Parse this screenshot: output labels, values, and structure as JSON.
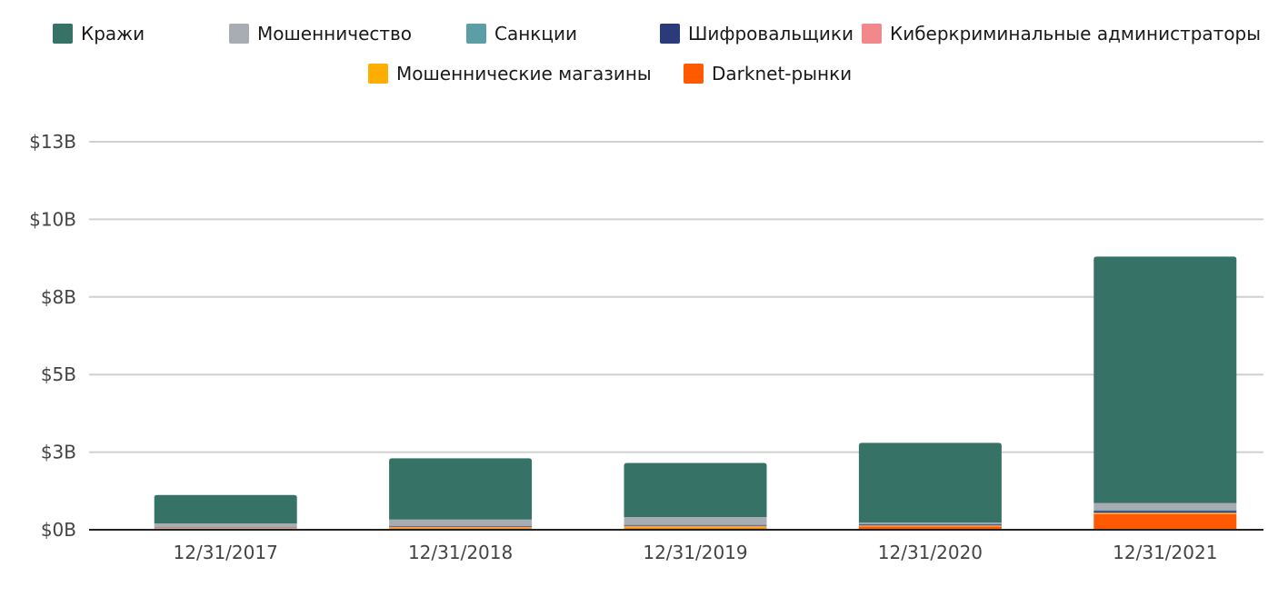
{
  "chart_data": {
    "type": "bar",
    "stacked": true,
    "title": "",
    "xlabel": "",
    "ylabel": "",
    "unit": "USD billions",
    "categories": [
      "12/31/2017",
      "12/31/2018",
      "12/31/2019",
      "12/31/2020",
      "12/31/2021"
    ],
    "series": [
      {
        "name": "Darknet-рынки",
        "color": "#ff5a00",
        "values": [
          0.02,
          0.04,
          0.05,
          0.1,
          0.5
        ]
      },
      {
        "name": "Мошеннические магазины",
        "color": "#ffad00",
        "values": [
          0.02,
          0.03,
          0.05,
          0.02,
          0.03
        ]
      },
      {
        "name": "Киберкриминальные администраторы",
        "color": "#f2878c",
        "values": [
          0.02,
          0.03,
          0.02,
          0.02,
          0.02
        ]
      },
      {
        "name": "Шифровальщики",
        "color": "#2b3a78",
        "values": [
          0.01,
          0.02,
          0.02,
          0.03,
          0.05
        ]
      },
      {
        "name": "Санкции",
        "color": "#5b9ea6",
        "values": [
          0.01,
          0.02,
          0.02,
          0.02,
          0.03
        ]
      },
      {
        "name": "Мошенничество",
        "color": "#a8acb3",
        "values": [
          0.12,
          0.19,
          0.25,
          0.04,
          0.23
        ]
      },
      {
        "name": "Кражи",
        "color": "#367366",
        "values": [
          0.92,
          1.97,
          1.74,
          2.57,
          7.94
        ]
      }
    ],
    "legend_order": [
      "Кражи",
      "Мошенничество",
      "Санкции",
      "Шифровальщики",
      "Киберкриминальные администраторы",
      "Мошеннические магазины",
      "Darknet-рынки"
    ],
    "legend_position": "top",
    "y_ticks": [
      {
        "value": 0,
        "label": "$0B"
      },
      {
        "value": 2.5,
        "label": "$3B"
      },
      {
        "value": 5,
        "label": "$5B"
      },
      {
        "value": 7.5,
        "label": "$8B"
      },
      {
        "value": 10,
        "label": "$10B"
      },
      {
        "value": 12.5,
        "label": "$13B"
      }
    ],
    "ylim": [
      0,
      12.5
    ],
    "grid": true
  }
}
